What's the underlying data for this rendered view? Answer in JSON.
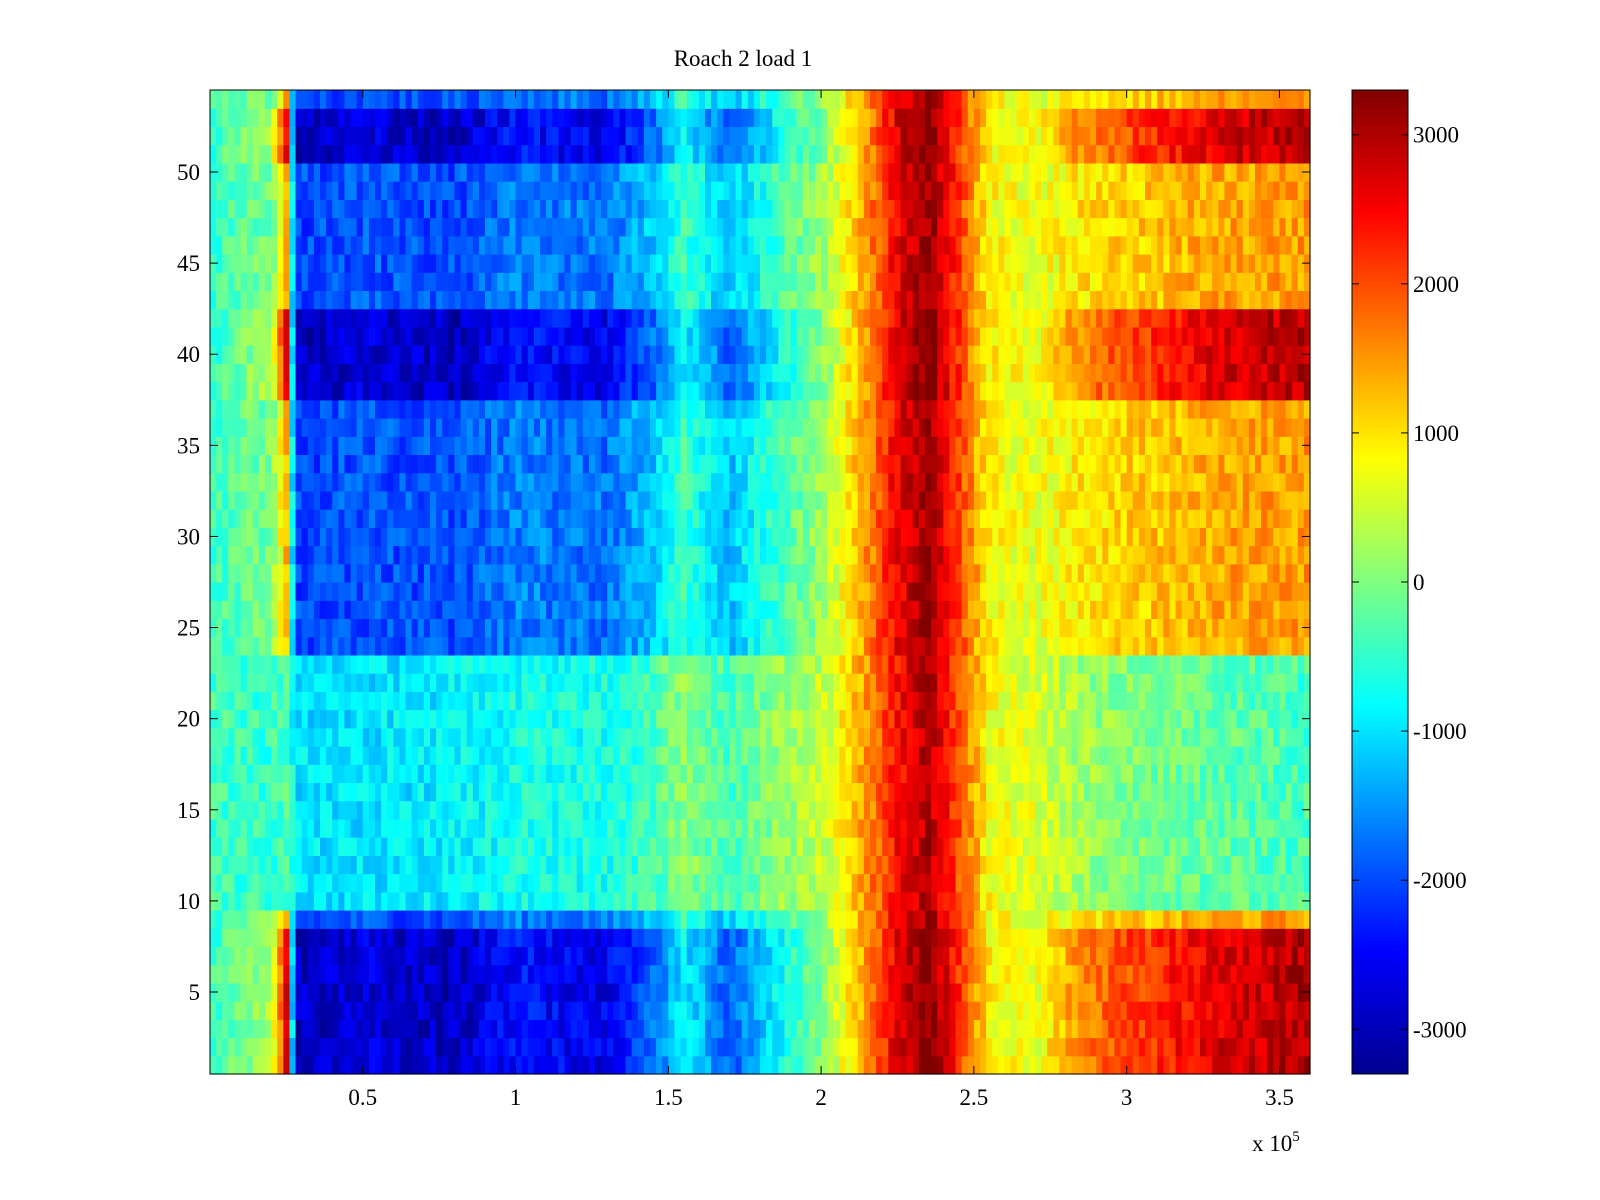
{
  "chart_data": {
    "type": "heatmap",
    "title": "Roach 2 load 1",
    "xlabel": "",
    "ylabel": "",
    "x_multiplier_label": "x 10",
    "x_multiplier_exponent": "5",
    "xlim": [
      0,
      3.6
    ],
    "ylim": [
      0.5,
      54.5
    ],
    "x_ticks": [
      0.5,
      1,
      1.5,
      2,
      2.5,
      3,
      3.5
    ],
    "x_tick_labels": [
      "0.5",
      "1",
      "1.5",
      "2",
      "2.5",
      "3",
      "3.5"
    ],
    "y_ticks": [
      5,
      10,
      15,
      20,
      25,
      30,
      35,
      40,
      45,
      50
    ],
    "y_tick_labels": [
      "5",
      "10",
      "15",
      "20",
      "25",
      "30",
      "35",
      "40",
      "45",
      "50"
    ],
    "colormap": "jet",
    "colorbar": {
      "range": [
        -3300,
        3300
      ],
      "ticks": [
        -3000,
        -2000,
        -1000,
        0,
        1000,
        2000,
        3000
      ],
      "tick_labels": [
        "-3000",
        "-2000",
        "-1000",
        "0",
        "1000",
        "2000",
        "3000"
      ]
    },
    "rows": 54,
    "grid": false,
    "profile": {
      "description_of_columns": "approximate value vs x (x in units of 10^5) for rows in the strong bands",
      "x": [
        0,
        0.2,
        0.25,
        0.28,
        0.5,
        0.8,
        1.0,
        1.3,
        1.45,
        1.55,
        1.7,
        1.85,
        2.0,
        2.15,
        2.25,
        2.35,
        2.45,
        2.55,
        2.7,
        2.85,
        3.0,
        3.3,
        3.6
      ],
      "strong_band": [
        -500,
        300,
        2600,
        -2900,
        -2700,
        -2900,
        -2400,
        -2600,
        -1800,
        -900,
        -1900,
        -900,
        0,
        1500,
        2700,
        3300,
        2200,
        900,
        700,
        1600,
        2000,
        2700,
        3000
      ],
      "weak_band": [
        -400,
        -500,
        -300,
        -1000,
        -1000,
        -900,
        -700,
        -700,
        -400,
        100,
        -400,
        100,
        400,
        1500,
        2400,
        3000,
        2000,
        800,
        600,
        200,
        0,
        -200,
        -400
      ]
    },
    "strong_rows": [
      1,
      2,
      3,
      4,
      5,
      6,
      7,
      8,
      38,
      39,
      40,
      41,
      42,
      51,
      52,
      53
    ],
    "medium_rows": [
      9,
      24,
      25,
      26,
      27,
      28,
      29,
      30,
      31,
      32,
      33,
      34,
      35,
      36,
      37,
      43,
      44,
      45,
      46,
      47,
      48,
      49,
      50,
      54
    ],
    "weak_rows": [
      10,
      11,
      12,
      13,
      14,
      15,
      16,
      17,
      18,
      19,
      20,
      21,
      22,
      23
    ]
  }
}
